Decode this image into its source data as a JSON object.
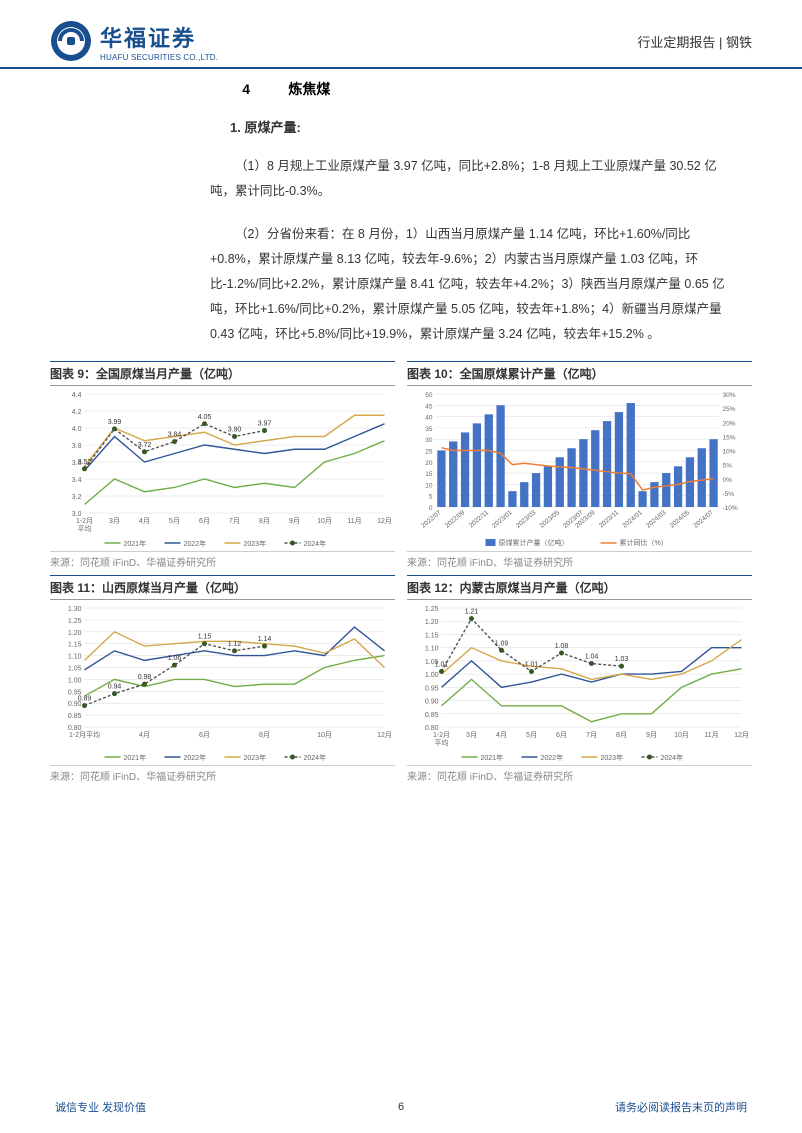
{
  "header": {
    "logo_cn": "华福证券",
    "logo_en": "HUAFU SECURITIES CO.,LTD.",
    "logo_circle_outer": "#1a4f8f",
    "logo_circle_inner": "#ffffff",
    "logo_square": "#1a4f8f",
    "right_text": "行业定期报告 | 钢铁"
  },
  "section": {
    "number": "4",
    "title": "炼焦煤",
    "sub_number": "1.",
    "sub_title": "原煤产量:"
  },
  "paragraphs": {
    "p1": "（1）8 月规上工业原煤产量 3.97 亿吨，同比+2.8%；1-8 月规上工业原煤产量 30.52 亿吨，累计同比-0.3%。",
    "p2": "（2）分省份来看：在 8 月份，1）山西当月原煤产量 1.14 亿吨，环比+1.60%/同比+0.8%，累计原煤产量 8.13 亿吨，较去年-9.6%；2）内蒙古当月原煤产量 1.03 亿吨，环比-1.2%/同比+2.2%，累计原煤产量 8.41 亿吨，较去年+4.2%；3）陕西当月原煤产量 0.65 亿吨，环比+1.6%/同比+0.2%，累计原煤产量 5.05 亿吨，较去年+1.8%；4）新疆当月原煤产量 0.43 亿吨，环比+5.8%/同比+19.9%，累计原煤产量 3.24 亿吨，较去年+15.2% 。"
  },
  "charts": {
    "source_text": "来源：同花顺 iFinD、华福证券研究所",
    "legend_years": [
      "2021年",
      "2022年",
      "2023年",
      "2024年"
    ],
    "colors": {
      "y2021": "#70ad47",
      "y2022": "#2f5597",
      "y2023": "#d4a84b",
      "y2024_line": "#555555",
      "y2024_marker": "#385723",
      "bar": "#4472c4",
      "cum_line": "#ed7d31",
      "grid": "#d9d9d9",
      "axis": "#888888",
      "text": "#666666",
      "bg": "#ffffff"
    },
    "chart9": {
      "title": "图表 9：全国原煤当月产量（亿吨）",
      "type": "line",
      "xlabels": [
        "1-2月\n平均",
        "3月",
        "4月",
        "5月",
        "6月",
        "7月",
        "8月",
        "9月",
        "10月",
        "11月",
        "12月"
      ],
      "ylim": [
        3.0,
        4.4
      ],
      "ytick_step": 0.2,
      "yticks": [
        "3.0",
        "3.2",
        "3.4",
        "3.6",
        "3.8",
        "4.0",
        "4.2",
        "4.4"
      ],
      "series": {
        "y2021": [
          3.1,
          3.4,
          3.25,
          3.3,
          3.4,
          3.3,
          3.35,
          3.3,
          3.6,
          3.7,
          3.85
        ],
        "y2022": [
          3.5,
          3.9,
          3.6,
          3.7,
          3.8,
          3.75,
          3.7,
          3.75,
          3.75,
          3.9,
          4.05
        ],
        "y2023": [
          3.55,
          4.0,
          3.85,
          3.9,
          3.95,
          3.8,
          3.85,
          3.9,
          3.9,
          4.15,
          4.15
        ],
        "y2024": [
          3.52,
          3.99,
          3.72,
          3.84,
          4.05,
          3.9,
          3.97
        ]
      },
      "data_labels_2024": [
        "3.52",
        "3.99",
        "3.72",
        "3.84",
        "4.05",
        "3.90",
        "3.97"
      ]
    },
    "chart10": {
      "title": "图表 10：全国原煤累计产量（亿吨）",
      "type": "bar-line",
      "xlabels": [
        "2022/07",
        "2022/09",
        "2022/11",
        "2023/01",
        "2023/03",
        "2023/05",
        "2023/07",
        "2023/09",
        "2023/11",
        "2024/01",
        "2024/03",
        "2024/05",
        "2024/07"
      ],
      "y1lim": [
        0,
        50
      ],
      "y1ticks": [
        "0",
        "5",
        "10",
        "15",
        "20",
        "25",
        "30",
        "35",
        "40",
        "45",
        "50"
      ],
      "y2lim": [
        -10,
        30
      ],
      "y2ticks": [
        "-10%",
        "-5%",
        "0%",
        "5%",
        "10%",
        "15%",
        "20%",
        "25%",
        "30%"
      ],
      "bars": [
        25,
        29,
        33,
        37,
        41,
        45,
        7,
        11,
        15,
        18,
        22,
        26,
        30,
        34,
        38,
        42,
        46,
        7,
        11,
        15,
        18,
        22,
        26,
        30
      ],
      "line": [
        11,
        10,
        10,
        10,
        10,
        9,
        5,
        5.5,
        5,
        4.5,
        4.2,
        4,
        3.5,
        3,
        2.5,
        2,
        1.8,
        -4,
        -3,
        -2.5,
        -2,
        -1,
        -0.5,
        0
      ],
      "legend_bar": "原煤累计产量（亿吨）",
      "legend_line": "累计同比（%）"
    },
    "chart11": {
      "title": "图表 11：山西原煤当月产量（亿吨）",
      "type": "line",
      "xlabels": [
        "1-2月平均",
        "",
        "4月",
        "",
        "6月",
        "",
        "8月",
        "",
        "10月",
        "",
        "12月"
      ],
      "ylim": [
        0.8,
        1.3
      ],
      "ytick_step": 0.05,
      "yticks": [
        "0.80",
        "0.85",
        "0.90",
        "0.95",
        "1.00",
        "1.05",
        "1.10",
        "1.15",
        "1.20",
        "1.25",
        "1.30"
      ],
      "series": {
        "y2021": [
          0.93,
          1.0,
          0.97,
          1.0,
          1.0,
          0.97,
          0.98,
          0.98,
          1.05,
          1.08,
          1.1
        ],
        "y2022": [
          1.04,
          1.12,
          1.08,
          1.1,
          1.12,
          1.1,
          1.1,
          1.12,
          1.1,
          1.22,
          1.12
        ],
        "y2023": [
          1.08,
          1.2,
          1.14,
          1.15,
          1.16,
          1.16,
          1.15,
          1.14,
          1.11,
          1.17,
          1.05
        ],
        "y2024": [
          0.89,
          0.94,
          0.98,
          1.06,
          1.15,
          1.12,
          1.14
        ]
      },
      "data_labels_2024": [
        "0.89",
        "0.94",
        "0.98",
        "1.06",
        "1.15",
        "1.12",
        "1.14"
      ]
    },
    "chart12": {
      "title": "图表 12：内蒙古原煤当月产量（亿吨）",
      "type": "line",
      "xlabels": [
        "1-2月\n平均",
        "3月",
        "4月",
        "5月",
        "6月",
        "7月",
        "8月",
        "9月",
        "10月",
        "11月",
        "12月"
      ],
      "ylim": [
        0.8,
        1.25
      ],
      "ytick_step": 0.05,
      "yticks": [
        "0.80",
        "0.85",
        "0.90",
        "0.95",
        "1.00",
        "1.05",
        "1.10",
        "1.15",
        "1.20",
        "1.25"
      ],
      "series": {
        "y2021": [
          0.88,
          0.98,
          0.88,
          0.88,
          0.88,
          0.82,
          0.85,
          0.85,
          0.95,
          1.0,
          1.02
        ],
        "y2022": [
          0.95,
          1.05,
          0.95,
          0.97,
          1.0,
          0.97,
          1.0,
          1.0,
          1.01,
          1.1,
          1.1
        ],
        "y2023": [
          1.0,
          1.1,
          1.05,
          1.03,
          1.02,
          0.98,
          1.0,
          0.98,
          1.0,
          1.05,
          1.13
        ],
        "y2024": [
          1.01,
          1.21,
          1.09,
          1.01,
          1.08,
          1.04,
          1.03
        ]
      },
      "data_labels_2024": [
        "1.01",
        "1.21",
        "1.09",
        "1.01",
        "1.08",
        "1.04",
        "1.03"
      ]
    }
  },
  "footer": {
    "left": "诚信专业  发现价值",
    "page": "6",
    "right": "请务必阅读报告末页的声明"
  }
}
